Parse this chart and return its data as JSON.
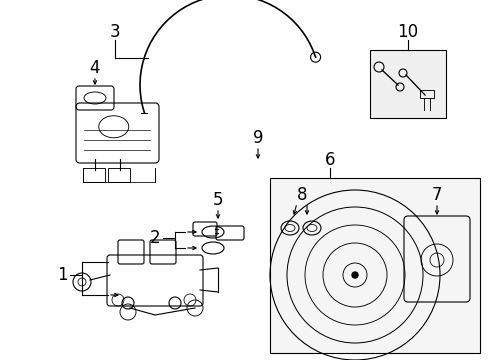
{
  "background_color": "#ffffff",
  "line_color": "#000000",
  "text_color": "#000000",
  "fig_width": 4.89,
  "fig_height": 3.6,
  "dpi": 100,
  "label_fontsize": 11
}
